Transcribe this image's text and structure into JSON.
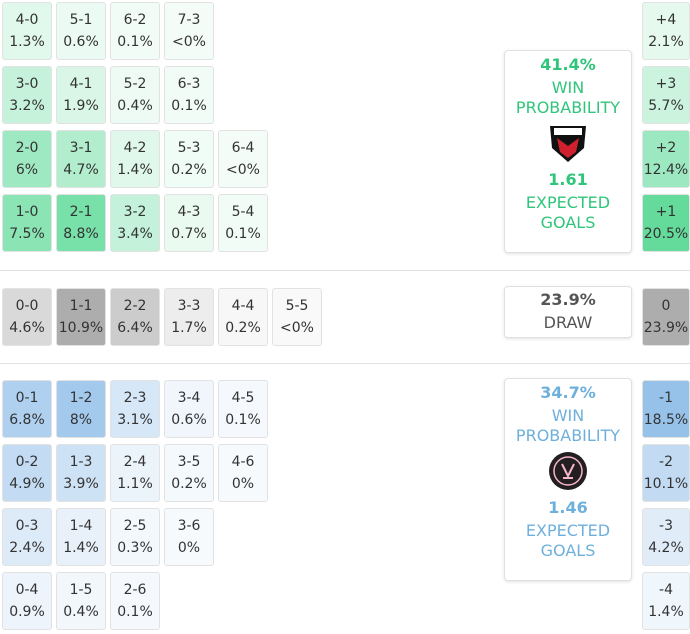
{
  "home_rows": [
    [
      [
        "4-0",
        "1.3%"
      ],
      [
        "5-1",
        "0.6%"
      ],
      [
        "6-2",
        "0.1%"
      ],
      [
        "7-3",
        "<0%"
      ]
    ],
    [
      [
        "3-0",
        "3.2%"
      ],
      [
        "4-1",
        "1.9%"
      ],
      [
        "5-2",
        "0.4%"
      ],
      [
        "6-3",
        "0.1%"
      ]
    ],
    [
      [
        "2-0",
        "6%"
      ],
      [
        "3-1",
        "4.7%"
      ],
      [
        "4-2",
        "1.4%"
      ],
      [
        "5-3",
        "0.2%"
      ],
      [
        "6-4",
        "<0%"
      ]
    ],
    [
      [
        "1-0",
        "7.5%"
      ],
      [
        "2-1",
        "8.8%"
      ],
      [
        "3-2",
        "3.4%"
      ],
      [
        "4-3",
        "0.7%"
      ],
      [
        "5-4",
        "0.1%"
      ]
    ]
  ],
  "draw_row": [
    [
      "0-0",
      "4.6%"
    ],
    [
      "1-1",
      "10.9%"
    ],
    [
      "2-2",
      "6.4%"
    ],
    [
      "3-3",
      "1.7%"
    ],
    [
      "4-4",
      "0.2%"
    ],
    [
      "5-5",
      "<0%"
    ]
  ],
  "away_rows": [
    [
      [
        "0-1",
        "6.8%"
      ],
      [
        "1-2",
        "8%"
      ],
      [
        "2-3",
        "3.1%"
      ],
      [
        "3-4",
        "0.6%"
      ],
      [
        "4-5",
        "0.1%"
      ]
    ],
    [
      [
        "0-2",
        "4.9%"
      ],
      [
        "1-3",
        "3.9%"
      ],
      [
        "2-4",
        "1.1%"
      ],
      [
        "3-5",
        "0.2%"
      ],
      [
        "4-6",
        "0%"
      ]
    ],
    [
      [
        "0-3",
        "2.4%"
      ],
      [
        "1-4",
        "1.4%"
      ],
      [
        "2-5",
        "0.3%"
      ],
      [
        "3-6",
        "0%"
      ]
    ],
    [
      [
        "0-4",
        "0.9%"
      ],
      [
        "1-5",
        "0.4%"
      ],
      [
        "2-6",
        "0.1%"
      ]
    ]
  ],
  "home_margins": [
    [
      "+4",
      "2.1%"
    ],
    [
      "+3",
      "5.7%"
    ],
    [
      "+2",
      "12.4%"
    ],
    [
      "+1",
      "20.5%"
    ]
  ],
  "draw_margin": [
    "0",
    "23.9%"
  ],
  "away_margins": [
    [
      "-1",
      "18.5%"
    ],
    [
      "-2",
      "10.1%"
    ],
    [
      "-3",
      "4.2%"
    ],
    [
      "-4",
      "1.4%"
    ]
  ],
  "home_card": {
    "win_pct": "41.4%",
    "win_label": "WIN PROBABILITY",
    "xg": "1.61",
    "xg_label": "EXPECTED GOALS"
  },
  "draw_card": {
    "pct": "23.9%",
    "label": "DRAW"
  },
  "away_card": {
    "win_pct": "34.7%",
    "win_label": "WIN PROBABILITY",
    "xg": "1.46",
    "xg_label": "EXPECTED GOALS"
  }
}
